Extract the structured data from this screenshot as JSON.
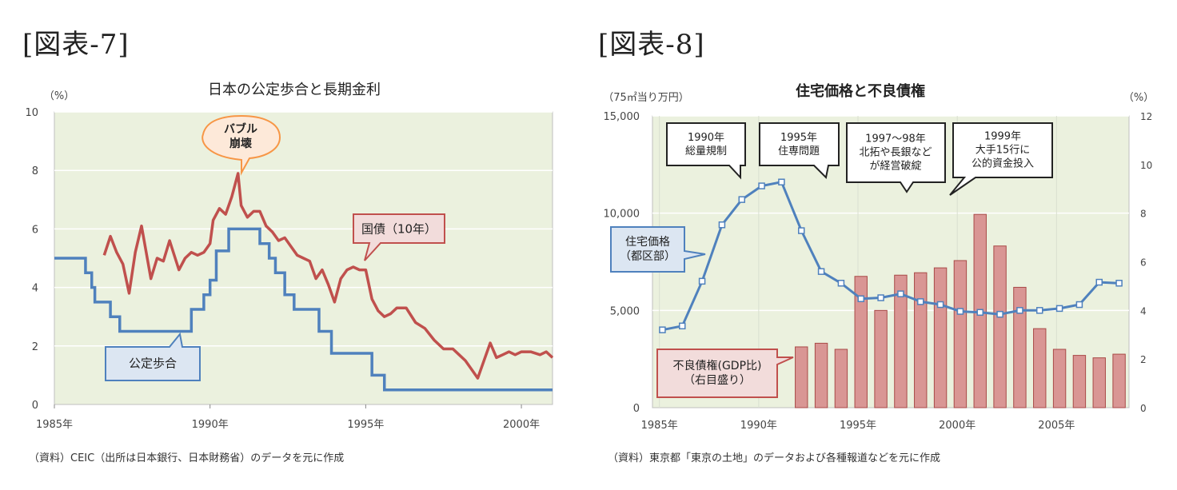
{
  "chart_data": [
    {
      "type": "line",
      "figure_label": "[図表-7]",
      "title": "日本の公定歩合と長期金利",
      "y_unit": "（%）",
      "source": "（資料）CEIC（出所は日本銀行、日本財務省）のデータを元に作成",
      "xlim": [
        1985,
        2001
      ],
      "ylim": [
        0,
        10
      ],
      "yticks": [
        "0",
        "2",
        "4",
        "6",
        "8",
        "10"
      ],
      "xtick_years": [
        1985,
        1990,
        1995,
        2000
      ],
      "xtick_labels": [
        "1985年",
        "1990年",
        "1995年",
        "2000年"
      ],
      "grid": true,
      "series": [
        {
          "name": "国債(10年)",
          "color": "#c0504d",
          "x": [
            1986.6,
            1986.8,
            1987.0,
            1987.2,
            1987.4,
            1987.6,
            1987.8,
            1988.1,
            1988.3,
            1988.5,
            1988.7,
            1989.0,
            1989.2,
            1989.4,
            1989.6,
            1989.8,
            1990.0,
            1990.1,
            1990.3,
            1990.5,
            1990.7,
            1990.9,
            1991.0,
            1991.2,
            1991.4,
            1991.6,
            1991.8,
            1992.0,
            1992.2,
            1992.4,
            1992.6,
            1992.8,
            1993.0,
            1993.2,
            1993.4,
            1993.6,
            1993.8,
            1994.0,
            1994.2,
            1994.4,
            1994.6,
            1994.8,
            1995.0,
            1995.2,
            1995.4,
            1995.6,
            1995.8,
            1996.0,
            1996.3,
            1996.6,
            1996.9,
            1997.2,
            1997.5,
            1997.8,
            1998.0,
            1998.2,
            1998.4,
            1998.6,
            1998.8,
            1999.0,
            1999.2,
            1999.4,
            1999.6,
            1999.8,
            2000.0,
            2000.3,
            2000.6,
            2000.8,
            2001.0
          ],
          "values": [
            5.1,
            5.75,
            5.2,
            4.8,
            3.8,
            5.2,
            6.1,
            4.3,
            5.0,
            4.9,
            5.6,
            4.6,
            5.0,
            5.2,
            5.1,
            5.2,
            5.5,
            6.3,
            6.7,
            6.5,
            7.1,
            7.9,
            6.8,
            6.4,
            6.6,
            6.6,
            6.1,
            5.9,
            5.6,
            5.7,
            5.4,
            5.1,
            5.0,
            4.9,
            4.3,
            4.6,
            4.1,
            3.5,
            4.3,
            4.6,
            4.7,
            4.6,
            4.6,
            3.6,
            3.2,
            3.0,
            3.1,
            3.3,
            3.3,
            2.8,
            2.6,
            2.2,
            1.9,
            1.9,
            1.7,
            1.5,
            1.2,
            0.9,
            1.5,
            2.1,
            1.6,
            1.7,
            1.8,
            1.7,
            1.8,
            1.8,
            1.7,
            1.8,
            1.6
          ]
        },
        {
          "name": "公定歩合",
          "color": "#4f81bd",
          "step": true,
          "x": [
            1985.0,
            1986.0,
            1986.2,
            1986.3,
            1986.8,
            1987.1,
            1989.4,
            1989.8,
            1990.0,
            1990.2,
            1990.6,
            1991.6,
            1991.9,
            1992.1,
            1992.4,
            1992.7,
            1993.0,
            1993.5,
            1993.9,
            1995.2,
            1995.6,
            2001.0
          ],
          "values": [
            5.0,
            4.5,
            4.0,
            3.5,
            3.0,
            2.5,
            3.25,
            3.75,
            4.25,
            5.25,
            6.0,
            5.5,
            5.0,
            4.5,
            3.75,
            3.25,
            3.25,
            2.5,
            1.75,
            1.0,
            0.5,
            0.5
          ]
        }
      ],
      "annotations": [
        {
          "id": "bubble",
          "lines": [
            "バブル",
            "崩壊"
          ]
        },
        {
          "id": "jgb",
          "lines": [
            "国債（10年）"
          ]
        },
        {
          "id": "odr",
          "lines": [
            "公定歩合"
          ]
        }
      ]
    },
    {
      "type": "bar+line",
      "figure_label": "[図表-8]",
      "title": "住宅価格と不良債権",
      "y_left_unit": "（75㎡当り万円）",
      "y_right_unit": "（%）",
      "source": "（資料）東京都「東京の土地」のデータおよび各種報道などを元に作成",
      "years": [
        1985,
        1986,
        1987,
        1988,
        1989,
        1990,
        1991,
        1992,
        1993,
        1994,
        1995,
        1996,
        1997,
        1998,
        1999,
        2000,
        2001,
        2002,
        2003,
        2004,
        2005,
        2006,
        2007,
        2008
      ],
      "ylim_left": [
        0,
        15000
      ],
      "ylim_right": [
        0,
        12
      ],
      "yticks_left": [
        "0",
        "5,000",
        "10,000",
        "15,000"
      ],
      "yticks_right": [
        "0",
        "2",
        "4",
        "6",
        "8",
        "10",
        "12"
      ],
      "xtick_years": [
        1985,
        1990,
        1995,
        2000,
        2005
      ],
      "xtick_labels": [
        "1985年",
        "1990年",
        "1995年",
        "2000年",
        "2005年"
      ],
      "grid": true,
      "series": [
        {
          "name": "住宅価格（都区部）",
          "axis": "left",
          "color": "#4f81bd",
          "values": [
            4000,
            4200,
            6500,
            9400,
            10700,
            11400,
            11600,
            9100,
            7000,
            6400,
            5600,
            5650,
            5850,
            5450,
            5300,
            4950,
            4900,
            4800,
            5000,
            5000,
            5100,
            5300,
            6450,
            6400
          ]
        },
        {
          "name": "不良債権(GDP比)（右目盛り）",
          "axis": "right",
          "color": "#d99694",
          "values": [
            null,
            null,
            null,
            null,
            null,
            null,
            null,
            2.5,
            2.65,
            2.4,
            5.4,
            4.0,
            5.45,
            5.55,
            5.75,
            6.05,
            7.95,
            6.65,
            4.95,
            3.25,
            2.4,
            2.15,
            2.05,
            2.2
          ]
        }
      ],
      "annotations": [
        {
          "id": "a1990",
          "lines": [
            "1990年",
            "総量規制"
          ]
        },
        {
          "id": "a1995",
          "lines": [
            "1995年",
            "住専問題"
          ]
        },
        {
          "id": "a1997",
          "lines": [
            "1997～98年",
            "北拓や長銀など",
            "が経営破綻"
          ]
        },
        {
          "id": "a1999",
          "lines": [
            "1999年",
            "大手15行に",
            "公的資金投入"
          ]
        },
        {
          "id": "price",
          "lines": [
            "住宅価格",
            "（都区部）"
          ]
        },
        {
          "id": "npl",
          "lines": [
            "不良債権(GDP比)",
            "（右目盛り）"
          ]
        }
      ]
    }
  ]
}
